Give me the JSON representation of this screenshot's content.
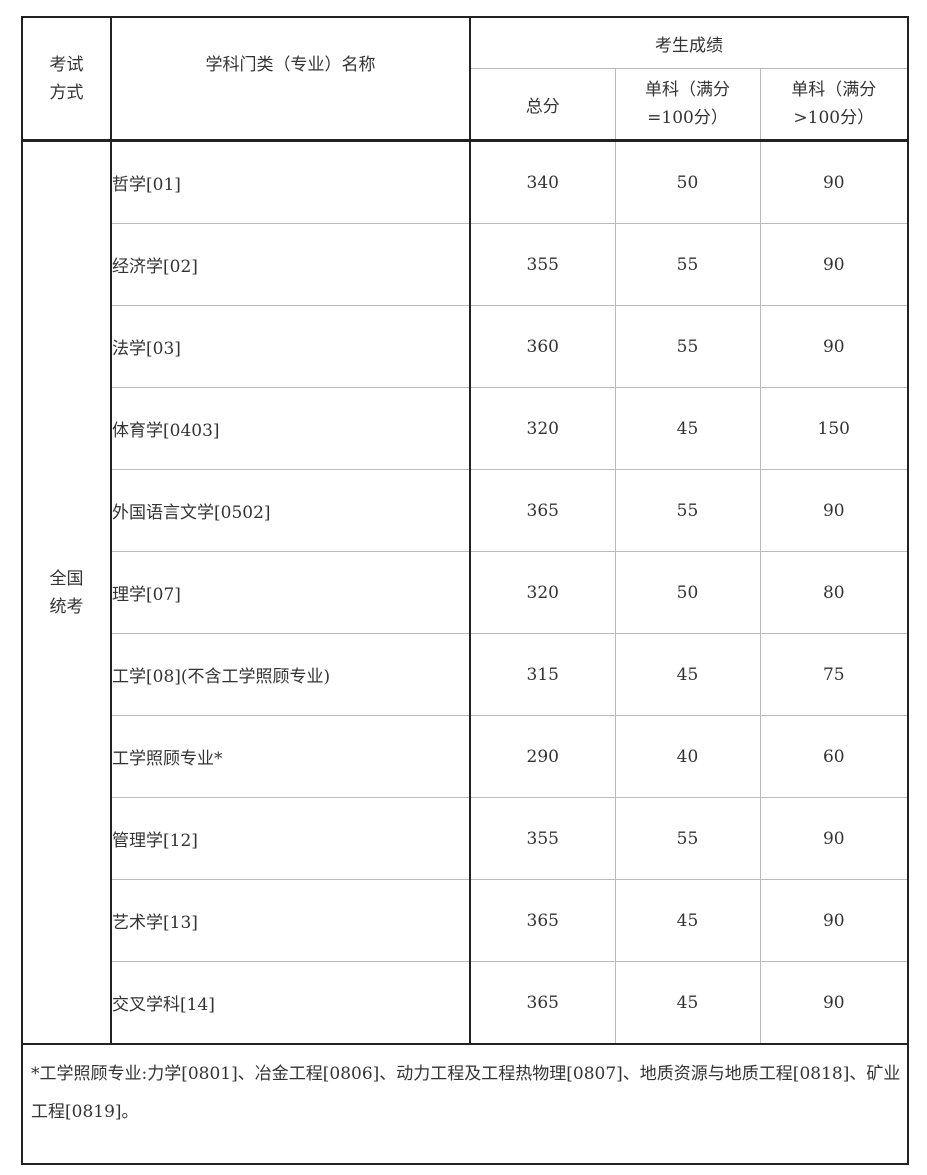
{
  "header": {
    "exam_method": "考试方式",
    "discipline_name": "学科门类（专业）名称",
    "scores_group": "考生成绩",
    "total": "总分",
    "single_100": "单科（满分=100分）",
    "single_over_100": "单科（满分>100分）"
  },
  "exam_method_value": "全国统考",
  "rows": [
    {
      "name": "哲学[01]",
      "total": "340",
      "single_100": "50",
      "single_over_100": "90"
    },
    {
      "name": "经济学[02]",
      "total": "355",
      "single_100": "55",
      "single_over_100": "90"
    },
    {
      "name": "法学[03]",
      "total": "360",
      "single_100": "55",
      "single_over_100": "90"
    },
    {
      "name": "体育学[0403]",
      "total": "320",
      "single_100": "45",
      "single_over_100": "150"
    },
    {
      "name": "外国语言文学[0502]",
      "total": "365",
      "single_100": "55",
      "single_over_100": "90"
    },
    {
      "name": "理学[07]",
      "total": "320",
      "single_100": "50",
      "single_over_100": "80"
    },
    {
      "name": "工学[08](不含工学照顾专业)",
      "total": "315",
      "single_100": "45",
      "single_over_100": "75"
    },
    {
      "name": "工学照顾专业*",
      "total": "290",
      "single_100": "40",
      "single_over_100": "60"
    },
    {
      "name": "管理学[12]",
      "total": "355",
      "single_100": "55",
      "single_over_100": "90"
    },
    {
      "name": "艺术学[13]",
      "total": "365",
      "single_100": "45",
      "single_over_100": "90"
    },
    {
      "name": "交叉学科[14]",
      "total": "365",
      "single_100": "45",
      "single_over_100": "90"
    }
  ],
  "footnote": "*工学照顾专业:力学[0801]、冶金工程[0806]、动力工程及工程热物理[0807]、地质资源与地质工程[0818]、矿业工程[0819]。"
}
